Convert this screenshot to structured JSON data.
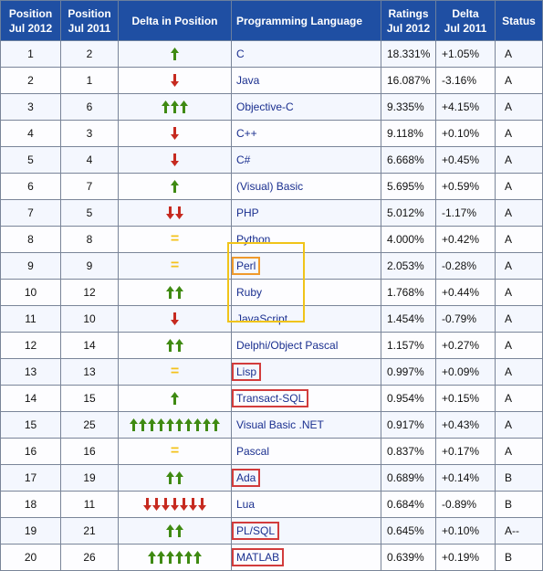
{
  "headers": {
    "pos2012": [
      "Position",
      "Jul 2012"
    ],
    "pos2011": [
      "Position",
      "Jul 2011"
    ],
    "delta_position": "Delta in Position",
    "language": "Programming Language",
    "ratings": [
      "Ratings",
      "Jul 2012"
    ],
    "delta": [
      "Delta",
      "Jul 2011"
    ],
    "status": "Status"
  },
  "colors": {
    "header_bg": "#1f4fa3",
    "arrow_up": "#3f8a12",
    "arrow_down": "#c62a20",
    "equal": "#f4c21a",
    "highlight_red": "#d23c3c",
    "highlight_orange": "#ef9a2c",
    "highlight_yellow": "#f0c419"
  },
  "rows": [
    {
      "pos2012": "1",
      "pos2011": "2",
      "trend": "up",
      "count": 1,
      "lang": "C",
      "rating": "18.331%",
      "delta": "+1.05%",
      "status": "A",
      "highlight": ""
    },
    {
      "pos2012": "2",
      "pos2011": "1",
      "trend": "down",
      "count": 1,
      "lang": "Java",
      "rating": "16.087%",
      "delta": "-3.16%",
      "status": "A",
      "highlight": ""
    },
    {
      "pos2012": "3",
      "pos2011": "6",
      "trend": "up",
      "count": 3,
      "lang": "Objective-C",
      "rating": "9.335%",
      "delta": "+4.15%",
      "status": "A",
      "highlight": ""
    },
    {
      "pos2012": "4",
      "pos2011": "3",
      "trend": "down",
      "count": 1,
      "lang": "C++",
      "rating": "9.118%",
      "delta": "+0.10%",
      "status": "A",
      "highlight": ""
    },
    {
      "pos2012": "5",
      "pos2011": "4",
      "trend": "down",
      "count": 1,
      "lang": "C#",
      "rating": "6.668%",
      "delta": "+0.45%",
      "status": "A",
      "highlight": ""
    },
    {
      "pos2012": "6",
      "pos2011": "7",
      "trend": "up",
      "count": 1,
      "lang": "(Visual) Basic",
      "rating": "5.695%",
      "delta": "+0.59%",
      "status": "A",
      "highlight": ""
    },
    {
      "pos2012": "7",
      "pos2011": "5",
      "trend": "down",
      "count": 2,
      "lang": "PHP",
      "rating": "5.012%",
      "delta": "-1.17%",
      "status": "A",
      "highlight": ""
    },
    {
      "pos2012": "8",
      "pos2011": "8",
      "trend": "equal",
      "count": 1,
      "lang": "Python",
      "rating": "4.000%",
      "delta": "+0.42%",
      "status": "A",
      "highlight": ""
    },
    {
      "pos2012": "9",
      "pos2011": "9",
      "trend": "equal",
      "count": 1,
      "lang": "Perl",
      "rating": "2.053%",
      "delta": "-0.28%",
      "status": "A",
      "highlight": "orange"
    },
    {
      "pos2012": "10",
      "pos2011": "12",
      "trend": "up",
      "count": 2,
      "lang": "Ruby",
      "rating": "1.768%",
      "delta": "+0.44%",
      "status": "A",
      "highlight": ""
    },
    {
      "pos2012": "11",
      "pos2011": "10",
      "trend": "down",
      "count": 1,
      "lang": "JavaScript",
      "rating": "1.454%",
      "delta": "-0.79%",
      "status": "A",
      "highlight": ""
    },
    {
      "pos2012": "12",
      "pos2011": "14",
      "trend": "up",
      "count": 2,
      "lang": "Delphi/Object Pascal",
      "rating": "1.157%",
      "delta": "+0.27%",
      "status": "A",
      "highlight": ""
    },
    {
      "pos2012": "13",
      "pos2011": "13",
      "trend": "equal",
      "count": 1,
      "lang": "Lisp",
      "rating": "0.997%",
      "delta": "+0.09%",
      "status": "A",
      "highlight": "red"
    },
    {
      "pos2012": "14",
      "pos2011": "15",
      "trend": "up",
      "count": 1,
      "lang": "Transact-SQL",
      "rating": "0.954%",
      "delta": "+0.15%",
      "status": "A",
      "highlight": "red"
    },
    {
      "pos2012": "15",
      "pos2011": "25",
      "trend": "up",
      "count": 10,
      "lang": "Visual Basic .NET",
      "rating": "0.917%",
      "delta": "+0.43%",
      "status": "A",
      "highlight": ""
    },
    {
      "pos2012": "16",
      "pos2011": "16",
      "trend": "equal",
      "count": 1,
      "lang": "Pascal",
      "rating": "0.837%",
      "delta": "+0.17%",
      "status": "A",
      "highlight": ""
    },
    {
      "pos2012": "17",
      "pos2011": "19",
      "trend": "up",
      "count": 2,
      "lang": "Ada",
      "rating": "0.689%",
      "delta": "+0.14%",
      "status": "B",
      "highlight": "red"
    },
    {
      "pos2012": "18",
      "pos2011": "11",
      "trend": "down",
      "count": 7,
      "lang": "Lua",
      "rating": "0.684%",
      "delta": "-0.89%",
      "status": "B",
      "highlight": ""
    },
    {
      "pos2012": "19",
      "pos2011": "21",
      "trend": "up",
      "count": 2,
      "lang": "PL/SQL",
      "rating": "0.645%",
      "delta": "+0.10%",
      "status": "A--",
      "highlight": "red"
    },
    {
      "pos2012": "20",
      "pos2011": "26",
      "trend": "up",
      "count": 6,
      "lang": "MATLAB",
      "rating": "0.639%",
      "delta": "+0.19%",
      "status": "B",
      "highlight": "red"
    }
  ]
}
